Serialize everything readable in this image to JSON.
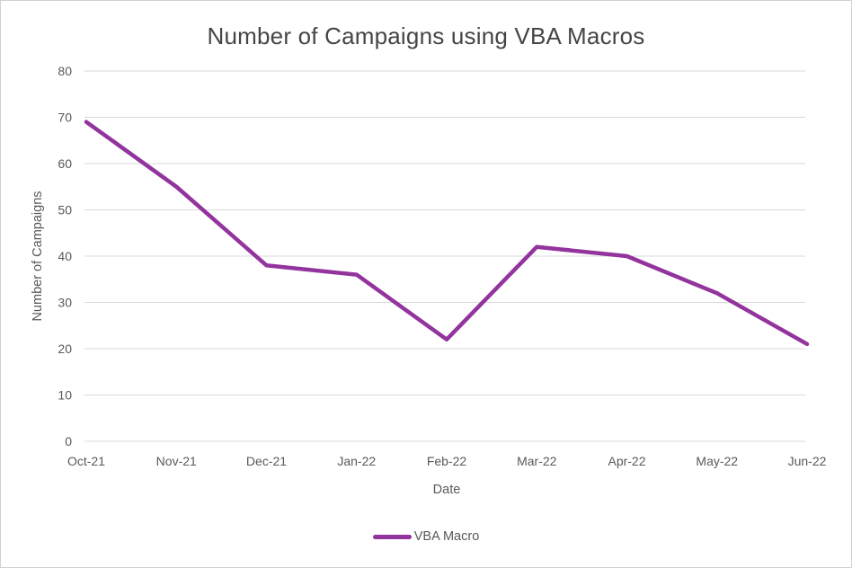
{
  "chart_data": {
    "type": "line",
    "title": "Number of Campaigns using VBA Macros",
    "xlabel": "Date",
    "ylabel": "Number of Campaigns",
    "categories": [
      "Oct-21",
      "Nov-21",
      "Dec-21",
      "Jan-22",
      "Feb-22",
      "Mar-22",
      "Apr-22",
      "May-22",
      "Jun-22"
    ],
    "series": [
      {
        "name": "VBA Macro",
        "values": [
          69,
          55,
          38,
          36,
          22,
          42,
          40,
          32,
          21
        ],
        "color": "#93349E"
      }
    ],
    "ylim": [
      0,
      80
    ],
    "yticks": [
      0,
      10,
      20,
      30,
      40,
      50,
      60,
      70,
      80
    ],
    "grid": "horizontal",
    "legend_position": "bottom",
    "colors": {
      "line": "#93349E",
      "gridline": "#d9d9d9",
      "text": "#595959",
      "title_text": "#454545",
      "background": "#ffffff",
      "border": "#d0d0d0"
    }
  }
}
